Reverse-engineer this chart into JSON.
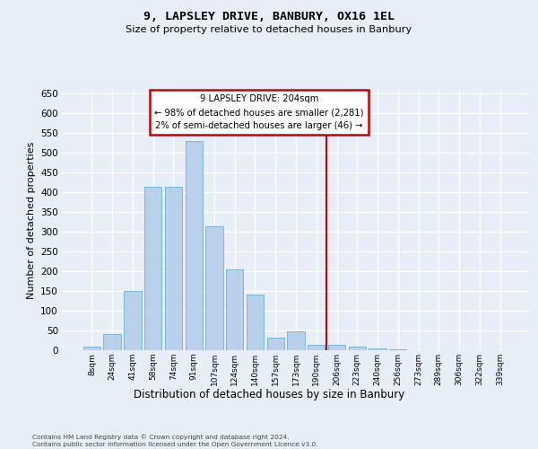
{
  "title": "9, LAPSLEY DRIVE, BANBURY, OX16 1EL",
  "subtitle": "Size of property relative to detached houses in Banbury",
  "xlabel": "Distribution of detached houses by size in Banbury",
  "ylabel": "Number of detached properties",
  "categories": [
    "8sqm",
    "24sqm",
    "41sqm",
    "58sqm",
    "74sqm",
    "91sqm",
    "107sqm",
    "124sqm",
    "140sqm",
    "157sqm",
    "173sqm",
    "190sqm",
    "206sqm",
    "223sqm",
    "240sqm",
    "256sqm",
    "273sqm",
    "289sqm",
    "306sqm",
    "322sqm",
    "339sqm"
  ],
  "values": [
    8,
    42,
    150,
    415,
    415,
    530,
    315,
    205,
    142,
    33,
    48,
    14,
    14,
    8,
    4,
    2,
    1,
    0,
    1,
    0,
    0
  ],
  "bar_color": "#b8d0ea",
  "bar_edge_color": "#6baed6",
  "vline_color": "#cc0000",
  "vline_index": 12.0,
  "annotation_text_line1": "9 LAPSLEY DRIVE: 204sqm",
  "annotation_text_line2": "← 98% of detached houses are smaller (2,281)",
  "annotation_text_line3": "2% of semi-detached houses are larger (46) →",
  "annotation_box_edge_color": "#cc0000",
  "footer_text": "Contains HM Land Registry data © Crown copyright and database right 2024.\nContains public sector information licensed under the Open Government Licence v3.0.",
  "background_color": "#e8eef7",
  "ylim": [
    0,
    660
  ],
  "yticks": [
    0,
    50,
    100,
    150,
    200,
    250,
    300,
    350,
    400,
    450,
    500,
    550,
    600,
    650
  ]
}
